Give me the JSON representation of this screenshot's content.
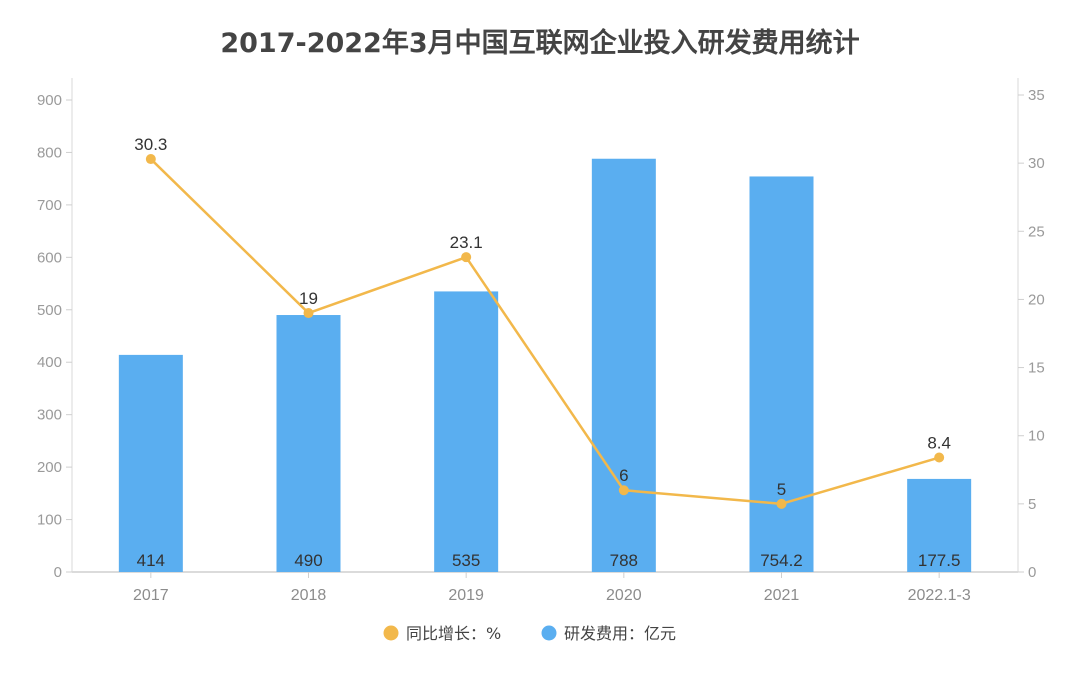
{
  "chart_data": {
    "type": "bar",
    "title": "2017-2022年3月中国互联网企业投入研发费用统计",
    "categories": [
      "2017",
      "2018",
      "2019",
      "2020",
      "2021",
      "2022.1-3"
    ],
    "series": [
      {
        "name": "研发费用：亿元",
        "type": "bar",
        "axis": "left",
        "color": "#5aaef0",
        "values": [
          414,
          490,
          535,
          788,
          754.2,
          177.5
        ],
        "labels": [
          "414",
          "490",
          "535",
          "788",
          "754.2",
          "177.5"
        ]
      },
      {
        "name": "同比增长：%",
        "type": "line",
        "axis": "right",
        "color": "#f2b84b",
        "values": [
          30.3,
          19,
          23.1,
          6,
          5,
          8.4
        ],
        "labels": [
          "30.3",
          "19",
          "23.1",
          "6",
          "5",
          "8.4"
        ]
      }
    ],
    "y_left": {
      "min": 0,
      "max": 900,
      "step": 100,
      "ticks": [
        "0",
        "100",
        "200",
        "300",
        "400",
        "500",
        "600",
        "700",
        "800",
        "900"
      ]
    },
    "y_right": {
      "min": 0,
      "max": 35,
      "step": 5,
      "ticks": [
        "0",
        "5",
        "10",
        "15",
        "20",
        "25",
        "30",
        "35"
      ]
    },
    "legend": {
      "position": "bottom-center",
      "items": [
        {
          "label": "同比增长：%",
          "color": "#f2b84b"
        },
        {
          "label": "研发费用：亿元",
          "color": "#5aaef0"
        }
      ]
    },
    "grid": false
  }
}
